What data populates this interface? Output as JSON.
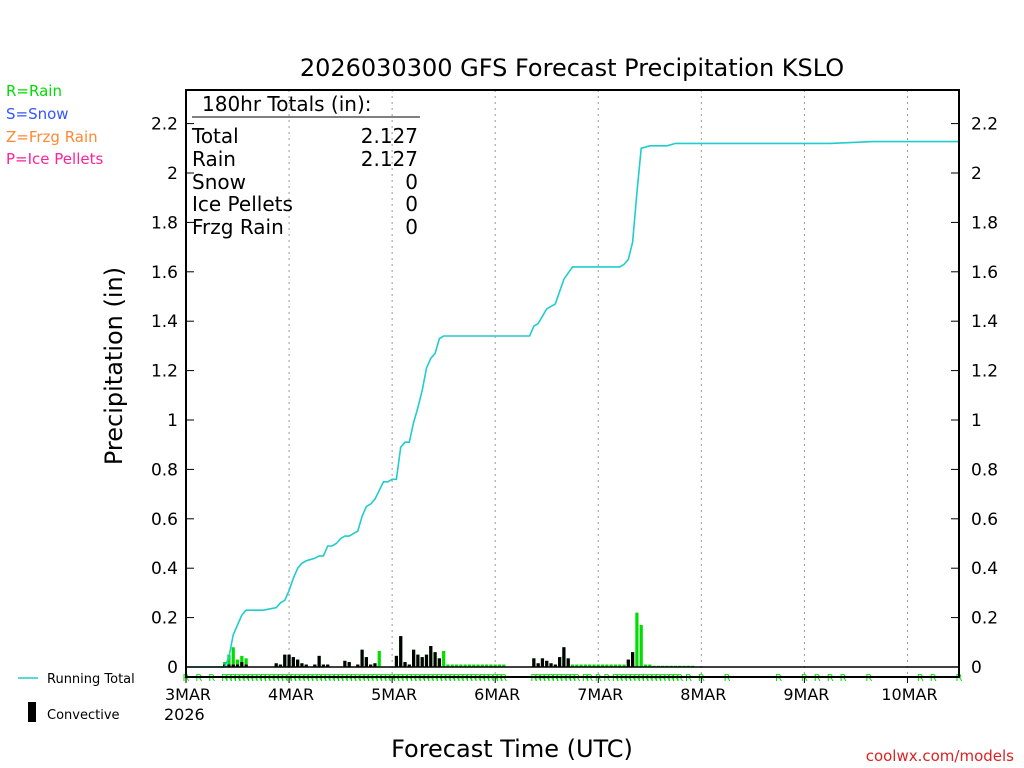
{
  "chart_data": {
    "type": "bar+line",
    "title": "2026030300 GFS Forecast Precipitation KSLO",
    "xlabel": "Forecast Time (UTC)",
    "ylabel": "Precipitation (in)",
    "ylim": [
      0,
      2.35
    ],
    "y_ticks": [
      0,
      0.2,
      0.4,
      0.6,
      0.8,
      1,
      1.2,
      1.4,
      1.6,
      1.8,
      2,
      2.2
    ],
    "y_tick_labels": [
      "0",
      "0.2",
      "0.4",
      "0.6",
      "0.8",
      "1",
      "1.2",
      "1.4",
      "1.6",
      "1.8",
      "2",
      "2.2"
    ],
    "x_range_hours": [
      0,
      180
    ],
    "x_ticks": [
      {
        "hour": 0,
        "label": "3MAR"
      },
      {
        "hour": 24,
        "label": "4MAR"
      },
      {
        "hour": 48,
        "label": "5MAR"
      },
      {
        "hour": 72,
        "label": "6MAR"
      },
      {
        "hour": 96,
        "label": "7MAR"
      },
      {
        "hour": 120,
        "label": "8MAR"
      },
      {
        "hour": 144,
        "label": "9MAR"
      },
      {
        "hour": 168,
        "label": "10MAR"
      }
    ],
    "year_label": "2026",
    "legend_types": [
      {
        "label": "R=Rain",
        "color": "#00dd00"
      },
      {
        "label": "S=Snow",
        "color": "#3355ff"
      },
      {
        "label": "Z=Frzg Rain",
        "color": "#ff8833"
      },
      {
        "label": "P=Ice Pellets",
        "color": "#ff2299"
      }
    ],
    "legend_lines": {
      "running_total": "Running Total",
      "convective": "Convective"
    },
    "totals_box": {
      "header": "180hr Totals (in):",
      "rows": [
        {
          "label": "Total",
          "value": "2.127"
        },
        {
          "label": "Rain",
          "value": "2.127"
        },
        {
          "label": "Snow",
          "value": "0"
        },
        {
          "label": "Ice Pellets",
          "value": "0"
        },
        {
          "label": "Frzg Rain",
          "value": "0"
        }
      ]
    },
    "credit": "coolwx.com/models",
    "series": [
      {
        "name": "Running Total",
        "color": "#22cccc",
        "x": [
          0,
          9,
          10,
          11,
          12,
          13,
          14,
          18,
          21,
          22,
          23,
          24,
          25,
          26,
          27,
          28,
          30,
          31,
          32,
          33,
          34,
          35,
          36,
          37,
          38,
          39,
          40,
          41,
          42,
          43,
          44,
          46,
          47,
          48,
          49,
          50,
          51,
          52,
          53,
          54,
          55,
          56,
          57,
          58,
          59,
          60,
          61,
          62,
          64,
          66,
          68,
          70,
          72,
          74,
          76,
          78,
          80,
          81,
          82,
          83,
          84,
          85,
          86,
          87,
          88,
          90,
          92,
          94,
          96,
          98,
          100,
          101,
          102,
          103,
          104,
          105,
          106,
          108,
          110,
          112,
          114,
          120,
          130,
          140,
          145,
          150,
          160,
          170,
          180
        ],
        "values": [
          0,
          0,
          0.04,
          0.13,
          0.17,
          0.21,
          0.23,
          0.23,
          0.24,
          0.26,
          0.27,
          0.31,
          0.36,
          0.4,
          0.42,
          0.43,
          0.44,
          0.45,
          0.45,
          0.49,
          0.49,
          0.5,
          0.52,
          0.53,
          0.53,
          0.54,
          0.55,
          0.61,
          0.65,
          0.66,
          0.68,
          0.75,
          0.75,
          0.76,
          0.76,
          0.89,
          0.91,
          0.91,
          0.99,
          1.05,
          1.12,
          1.21,
          1.25,
          1.27,
          1.33,
          1.34,
          1.34,
          1.34,
          1.34,
          1.34,
          1.34,
          1.34,
          1.34,
          1.34,
          1.34,
          1.34,
          1.34,
          1.38,
          1.39,
          1.42,
          1.45,
          1.46,
          1.47,
          1.52,
          1.57,
          1.62,
          1.62,
          1.62,
          1.62,
          1.62,
          1.62,
          1.62,
          1.63,
          1.65,
          1.72,
          1.92,
          2.1,
          2.11,
          2.11,
          2.11,
          2.12,
          2.12,
          2.12,
          2.12,
          2.12,
          2.12,
          2.127,
          2.127,
          2.127
        ]
      },
      {
        "name": "Interval Precip",
        "color": "#00dd00",
        "convective_color": "#000000",
        "x": [
          9,
          10,
          11,
          12,
          13,
          14,
          21,
          22,
          23,
          24,
          25,
          26,
          27,
          28,
          30,
          31,
          32,
          33,
          37,
          38,
          40,
          41,
          42,
          43,
          44,
          45,
          49,
          50,
          51,
          52,
          53,
          54,
          55,
          56,
          57,
          58,
          59,
          60,
          61,
          62,
          63,
          64,
          65,
          66,
          67,
          68,
          69,
          70,
          71,
          72,
          73,
          74,
          81,
          82,
          83,
          84,
          85,
          86,
          87,
          88,
          89,
          90,
          91,
          92,
          93,
          94,
          95,
          96,
          97,
          98,
          99,
          100,
          101,
          102,
          103,
          104,
          105,
          106,
          107,
          108,
          109,
          110,
          111,
          112,
          113,
          114,
          115,
          116,
          117,
          118
        ],
        "values": [
          0.02,
          0.05,
          0.08,
          0.03,
          0.045,
          0.035,
          0.015,
          0.01,
          0.05,
          0.05,
          0.04,
          0.03,
          0.015,
          0.01,
          0.01,
          0.045,
          0.01,
          0.01,
          0.025,
          0.02,
          0.01,
          0.07,
          0.04,
          0.01,
          0.015,
          0.065,
          0.045,
          0.125,
          0.02,
          0.01,
          0.07,
          0.05,
          0.04,
          0.05,
          0.085,
          0.06,
          0.035,
          0.065,
          0.01,
          0.01,
          0.01,
          0.01,
          0.01,
          0.01,
          0.01,
          0.01,
          0.01,
          0.01,
          0.01,
          0.01,
          0.01,
          0.01,
          0.035,
          0.015,
          0.035,
          0.025,
          0.015,
          0.01,
          0.04,
          0.08,
          0.035,
          0.01,
          0.01,
          0.01,
          0.01,
          0.01,
          0.01,
          0.01,
          0.01,
          0.01,
          0.01,
          0.01,
          0.01,
          0.01,
          0.03,
          0.06,
          0.22,
          0.17,
          0.01,
          0.01,
          0.005,
          0.005,
          0.005,
          0.005,
          0.005,
          0.005,
          0.005,
          0.005,
          0.005,
          0.005
        ],
        "convective": [
          0.01,
          0.01,
          0.01,
          0.01,
          0.02,
          0.01,
          0.015,
          0.01,
          0.05,
          0.05,
          0.04,
          0.03,
          0.015,
          0.01,
          0.01,
          0.045,
          0.01,
          0.01,
          0.025,
          0.02,
          0.01,
          0.07,
          0.04,
          0.01,
          0.015,
          0.0,
          0.045,
          0.125,
          0.02,
          0.01,
          0.07,
          0.05,
          0.04,
          0.05,
          0.085,
          0.06,
          0.035,
          0.0,
          0.0,
          0.0,
          0.0,
          0.0,
          0.0,
          0.0,
          0.0,
          0.0,
          0.0,
          0.0,
          0.0,
          0.0,
          0.0,
          0.0,
          0.035,
          0.015,
          0.035,
          0.025,
          0.015,
          0.01,
          0.04,
          0.08,
          0.035,
          0.0,
          0.0,
          0.0,
          0.0,
          0.0,
          0.0,
          0.0,
          0.0,
          0.0,
          0.0,
          0.0,
          0.0,
          0.0,
          0.03,
          0.06,
          0.0,
          0.0,
          0.0,
          0.0,
          0.0,
          0.0,
          0.0,
          0.0,
          0.0,
          0.0,
          0.0,
          0.0,
          0.0,
          0.0
        ]
      }
    ],
    "precip_type_markers": {
      "symbol": "R",
      "color": "#00dd00",
      "hours": [
        0,
        3,
        6,
        9,
        10,
        11,
        12,
        13,
        14,
        15,
        16,
        17,
        18,
        19,
        20,
        21,
        22,
        23,
        24,
        25,
        26,
        27,
        28,
        29,
        30,
        31,
        32,
        33,
        34,
        35,
        36,
        37,
        38,
        39,
        40,
        41,
        42,
        43,
        44,
        45,
        46,
        47,
        48,
        49,
        50,
        51,
        52,
        53,
        54,
        55,
        56,
        57,
        58,
        59,
        60,
        61,
        62,
        63,
        64,
        65,
        66,
        67,
        68,
        69,
        70,
        71,
        72,
        73,
        74,
        81,
        82,
        83,
        84,
        85,
        86,
        87,
        88,
        89,
        90,
        91,
        93,
        94,
        96,
        98,
        100,
        101,
        102,
        103,
        104,
        105,
        106,
        107,
        108,
        109,
        110,
        111,
        112,
        113,
        114,
        115,
        117,
        120,
        126,
        138,
        144,
        147,
        150,
        153,
        159,
        171,
        174,
        180
      ]
    }
  }
}
